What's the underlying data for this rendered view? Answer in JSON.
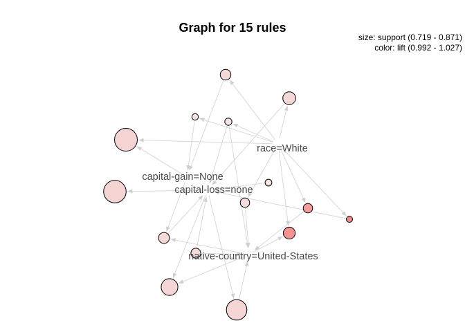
{
  "title": "Graph for 15 rules",
  "legend": {
    "size": "size: support (0.719 - 0.871)",
    "color": "color: lift (0.992 - 1.027)"
  },
  "colors": {
    "edge": "#d8d8d8",
    "node_low_lift": "#f5e2e2",
    "node_high_lift": "#f28a8a",
    "item_label": "#4a4a4a"
  },
  "items": {
    "race": "race=White",
    "gain": "capital-gain=None",
    "loss": "capital-loss=none",
    "country": "native-country=United-States"
  },
  "rules": [
    {
      "id": "r1",
      "support": 0.76,
      "lift": 0.996
    },
    {
      "id": "r2",
      "support": 0.78,
      "lift": 0.996
    },
    {
      "id": "r3",
      "support": 0.722,
      "lift": 0.992
    },
    {
      "id": "r4",
      "support": 0.728,
      "lift": 0.992
    },
    {
      "id": "r5",
      "support": 0.871,
      "lift": 0.998
    },
    {
      "id": "r6",
      "support": 0.868,
      "lift": 0.998
    },
    {
      "id": "r7",
      "support": 0.719,
      "lift": 1.027
    },
    {
      "id": "r8",
      "support": 0.724,
      "lift": 0.992
    },
    {
      "id": "r9",
      "support": 0.748,
      "lift": 1.02
    },
    {
      "id": "r10",
      "support": 0.771,
      "lift": 1.024
    },
    {
      "id": "r11",
      "support": 0.748,
      "lift": 0.994
    },
    {
      "id": "r12",
      "support": 0.762,
      "lift": 0.996
    },
    {
      "id": "r13",
      "support": 0.752,
      "lift": 0.995
    },
    {
      "id": "r14",
      "support": 0.815,
      "lift": 0.997
    },
    {
      "id": "r15",
      "support": 0.85,
      "lift": 0.997
    }
  ],
  "edges": [
    [
      "race",
      "r1"
    ],
    [
      "r1",
      "gain"
    ],
    [
      "race",
      "r2"
    ],
    [
      "r2",
      "loss"
    ],
    [
      "race",
      "r3"
    ],
    [
      "r3",
      "gain"
    ],
    [
      "race",
      "r4"
    ],
    [
      "r4",
      "loss"
    ],
    [
      "race",
      "r5"
    ],
    [
      "gain",
      "r5"
    ],
    [
      "loss",
      "r6"
    ],
    [
      "race",
      "r7"
    ],
    [
      "r7",
      "loss"
    ],
    [
      "r8",
      "loss"
    ],
    [
      "race",
      "r9"
    ],
    [
      "r9",
      "country"
    ],
    [
      "race",
      "r10"
    ],
    [
      "country",
      "r10"
    ],
    [
      "race",
      "r11"
    ],
    [
      "r11",
      "country"
    ],
    [
      "country",
      "r12"
    ],
    [
      "r12",
      "loss"
    ],
    [
      "r13",
      "loss"
    ],
    [
      "r13",
      "country"
    ],
    [
      "country",
      "r14"
    ],
    [
      "loss",
      "r14"
    ],
    [
      "loss",
      "r15"
    ],
    [
      "r15",
      "country"
    ],
    [
      "r4",
      "country"
    ],
    [
      "gain",
      "r12"
    ]
  ]
}
